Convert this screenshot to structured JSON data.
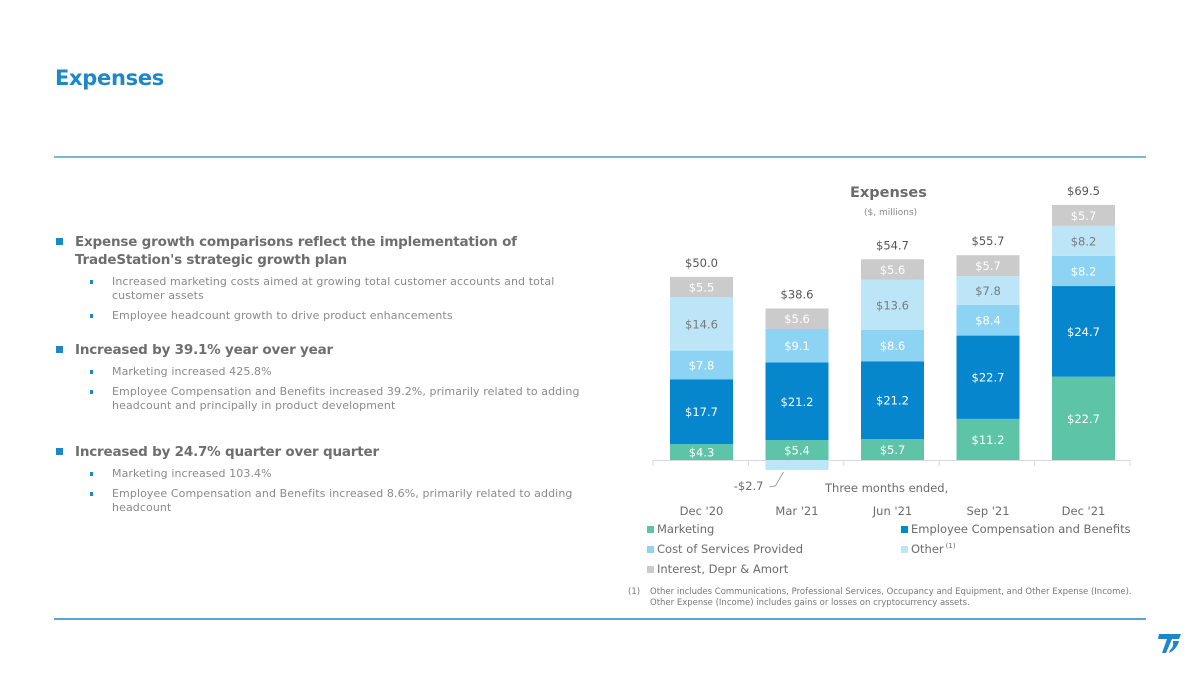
{
  "page": {
    "title": "Expenses"
  },
  "bullets": [
    {
      "heading": "Expense growth comparisons reflect the implementation of TradeStation's strategic growth plan",
      "sub": [
        "Increased marketing costs aimed at growing total customer accounts and total customer assets",
        "Employee headcount growth to drive product enhancements"
      ]
    },
    {
      "heading": "Increased by 39.1% year over year",
      "sub": [
        "Marketing increased 425.8%",
        "Employee Compensation and Benefits increased 39.2%, primarily related to adding headcount and principally in product development"
      ]
    },
    {
      "heading": "Increased by 24.7% quarter over quarter",
      "sub": [
        "Marketing increased 103.4%",
        "Employee Compensation and Benefits increased 8.6%, primarily related to adding headcount"
      ]
    }
  ],
  "chart_data": {
    "type": "bar",
    "stacked": true,
    "title": "Expenses",
    "subtitle": "($, millions)",
    "xlabel": "Three months ended,",
    "ylabel": "",
    "categories": [
      "Dec '20",
      "Mar '21",
      "Jun '21",
      "Sep '21",
      "Dec '21"
    ],
    "series": [
      {
        "name": "Marketing",
        "color": "#5ec4a8",
        "label_color": "#ffffff",
        "values": [
          4.3,
          5.4,
          5.7,
          11.2,
          22.7
        ]
      },
      {
        "name": "Employee Compensation and Benefits",
        "color": "#0686cc",
        "label_color": "#ffffff",
        "values": [
          17.7,
          21.2,
          21.2,
          22.7,
          24.7
        ]
      },
      {
        "name": "Cost of Services Provided",
        "color": "#8dd3f3",
        "label_color": "#ffffff",
        "values": [
          7.8,
          9.1,
          8.6,
          8.4,
          8.2
        ]
      },
      {
        "name": "Other",
        "name_sup": "(1)",
        "color": "#bde5f8",
        "label_color": "#7a7a7a",
        "values": [
          14.6,
          -2.7,
          13.6,
          7.8,
          8.2
        ]
      },
      {
        "name": "Interest, Depr & Amort",
        "color": "#cbcbcb",
        "label_color": "#ffffff",
        "values": [
          5.5,
          5.6,
          5.6,
          5.7,
          5.7
        ]
      }
    ],
    "totals": [
      50.0,
      38.6,
      54.7,
      55.7,
      69.5
    ],
    "total_labels": [
      "$50.0",
      "$38.6",
      "$54.7",
      "$55.7",
      "$69.5"
    ],
    "value_prefix": "$",
    "ylim": [
      -2.7,
      69.5
    ],
    "grid": false,
    "legend": "bottom"
  },
  "legend_labels": {
    "marketing": "Marketing",
    "employee": "Employee Compensation and Benefits",
    "cost": "Cost of Services Provided",
    "other": "Other",
    "other_sup": "(1)",
    "interest": "Interest, Depr & Amort"
  },
  "footnote": {
    "number": "(1)",
    "text": "Other includes Communications, Professional Services, Occupancy and Equipment, and Other Expense (Income). Other Expense (Income) includes gains or losses on cryptocurrency assets."
  },
  "logo": {
    "name": "TradeStation",
    "color": "#1e87c8"
  }
}
